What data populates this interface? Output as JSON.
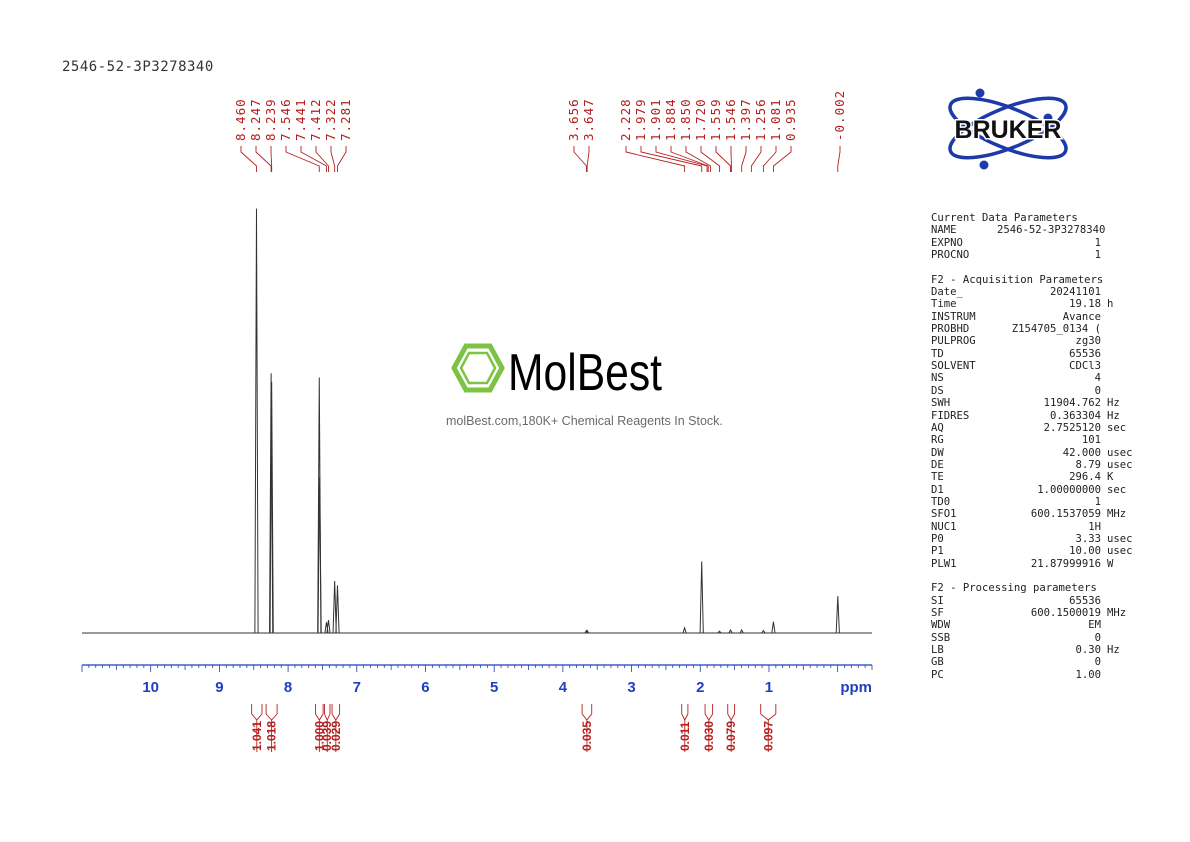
{
  "sample_id": "2546-52-3P3278340",
  "brand": {
    "name": "BRUKER",
    "ring_color": "#1c3aa8"
  },
  "watermark": {
    "name": "MolBest",
    "tagline": "molBest.com,180K+ Chemical Reagents In Stock.",
    "green": "#7dc243"
  },
  "colors": {
    "peak_label": "#b5201e",
    "axis": "#1f3fbf",
    "trace": "#333333"
  },
  "parameters": {
    "current": {
      "title": "Current Data Parameters",
      "rows": [
        {
          "k": "NAME",
          "v": "2546-52-3P3278340",
          "u": ""
        },
        {
          "k": "EXPNO",
          "v": "1",
          "u": ""
        },
        {
          "k": "PROCNO",
          "v": "1",
          "u": ""
        }
      ]
    },
    "acquisition": {
      "title": "F2 - Acquisition Parameters",
      "rows": [
        {
          "k": "Date_",
          "v": "20241101",
          "u": ""
        },
        {
          "k": "Time",
          "v": "19.18",
          "u": "h"
        },
        {
          "k": "INSTRUM",
          "v": "Avance",
          "u": ""
        },
        {
          "k": "PROBHD",
          "v": "Z154705_0134 (",
          "u": ""
        },
        {
          "k": "PULPROG",
          "v": "zg30",
          "u": ""
        },
        {
          "k": "TD",
          "v": "65536",
          "u": ""
        },
        {
          "k": "SOLVENT",
          "v": "CDCl3",
          "u": ""
        },
        {
          "k": "NS",
          "v": "4",
          "u": ""
        },
        {
          "k": "DS",
          "v": "0",
          "u": ""
        },
        {
          "k": "SWH",
          "v": "11904.762",
          "u": "Hz"
        },
        {
          "k": "FIDRES",
          "v": "0.363304",
          "u": "Hz"
        },
        {
          "k": "AQ",
          "v": "2.7525120",
          "u": "sec"
        },
        {
          "k": "RG",
          "v": "101",
          "u": ""
        },
        {
          "k": "DW",
          "v": "42.000",
          "u": "usec"
        },
        {
          "k": "DE",
          "v": "8.79",
          "u": "usec"
        },
        {
          "k": "TE",
          "v": "296.4",
          "u": "K"
        },
        {
          "k": "D1",
          "v": "1.00000000",
          "u": "sec"
        },
        {
          "k": "TD0",
          "v": "1",
          "u": ""
        },
        {
          "k": "SFO1",
          "v": "600.1537059",
          "u": "MHz"
        },
        {
          "k": "NUC1",
          "v": "1H",
          "u": ""
        },
        {
          "k": "P0",
          "v": "3.33",
          "u": "usec"
        },
        {
          "k": "P1",
          "v": "10.00",
          "u": "usec"
        },
        {
          "k": "PLW1",
          "v": "21.87999916",
          "u": "W"
        }
      ]
    },
    "processing": {
      "title": "F2 - Processing parameters",
      "rows": [
        {
          "k": "SI",
          "v": "65536",
          "u": ""
        },
        {
          "k": "SF",
          "v": "600.1500019",
          "u": "MHz"
        },
        {
          "k": "WDW",
          "v": "EM",
          "u": ""
        },
        {
          "k": "SSB",
          "v": "0",
          "u": ""
        },
        {
          "k": "LB",
          "v": "0.30",
          "u": "Hz"
        },
        {
          "k": "GB",
          "v": "0",
          "u": ""
        },
        {
          "k": "PC",
          "v": "1.00",
          "u": ""
        }
      ]
    }
  },
  "chart_data": {
    "type": "line",
    "xlabel": "ppm",
    "x_reversed": true,
    "xlim": [
      11.0,
      -0.5
    ],
    "ylim": [
      0,
      1
    ],
    "x_ticks": [
      10,
      9,
      8,
      7,
      6,
      5,
      4,
      3,
      2,
      1
    ],
    "peak_labels": [
      "8.460",
      "8.247",
      "8.239",
      "7.546",
      "7.441",
      "7.412",
      "7.322",
      "7.281",
      "3.656",
      "3.647",
      "2.228",
      "1.979",
      "1.901",
      "1.884",
      "1.850",
      "1.720",
      "1.559",
      "1.546",
      "1.397",
      "1.256",
      "1.081",
      "0.935",
      "-0.002"
    ],
    "peaks": [
      {
        "x": 8.46,
        "h": 0.98
      },
      {
        "x": 8.247,
        "h": 0.6
      },
      {
        "x": 8.239,
        "h": 0.58
      },
      {
        "x": 7.546,
        "h": 0.59
      },
      {
        "x": 7.541,
        "h": 0.36
      },
      {
        "x": 7.441,
        "h": 0.025
      },
      {
        "x": 7.412,
        "h": 0.03
      },
      {
        "x": 7.322,
        "h": 0.12
      },
      {
        "x": 7.281,
        "h": 0.11
      },
      {
        "x": 3.656,
        "h": 0.006
      },
      {
        "x": 3.647,
        "h": 0.006
      },
      {
        "x": 2.228,
        "h": 0.012
      },
      {
        "x": 1.979,
        "h": 0.165
      },
      {
        "x": 1.72,
        "h": 0.004
      },
      {
        "x": 1.559,
        "h": 0.007
      },
      {
        "x": 1.397,
        "h": 0.007
      },
      {
        "x": 1.081,
        "h": 0.006
      },
      {
        "x": 0.935,
        "h": 0.026
      },
      {
        "x": -0.002,
        "h": 0.085
      }
    ],
    "integrals": [
      {
        "label": "1.041",
        "from": 8.53,
        "to": 8.38
      },
      {
        "label": "1.018",
        "from": 8.32,
        "to": 8.16
      },
      {
        "label": "1.000",
        "from": 7.6,
        "to": 7.49
      },
      {
        "label": "0.039",
        "from": 7.47,
        "to": 7.39
      },
      {
        "label": "0.029",
        "from": 7.36,
        "to": 7.25
      },
      {
        "label": "0.035",
        "from": 3.72,
        "to": 3.58
      },
      {
        "label": "0.011",
        "from": 2.27,
        "to": 2.18
      },
      {
        "label": "0.030",
        "from": 1.93,
        "to": 1.82
      },
      {
        "label": "0.079",
        "from": 1.6,
        "to": 1.5
      },
      {
        "label": "0.097",
        "from": 1.12,
        "to": 0.9
      }
    ]
  }
}
